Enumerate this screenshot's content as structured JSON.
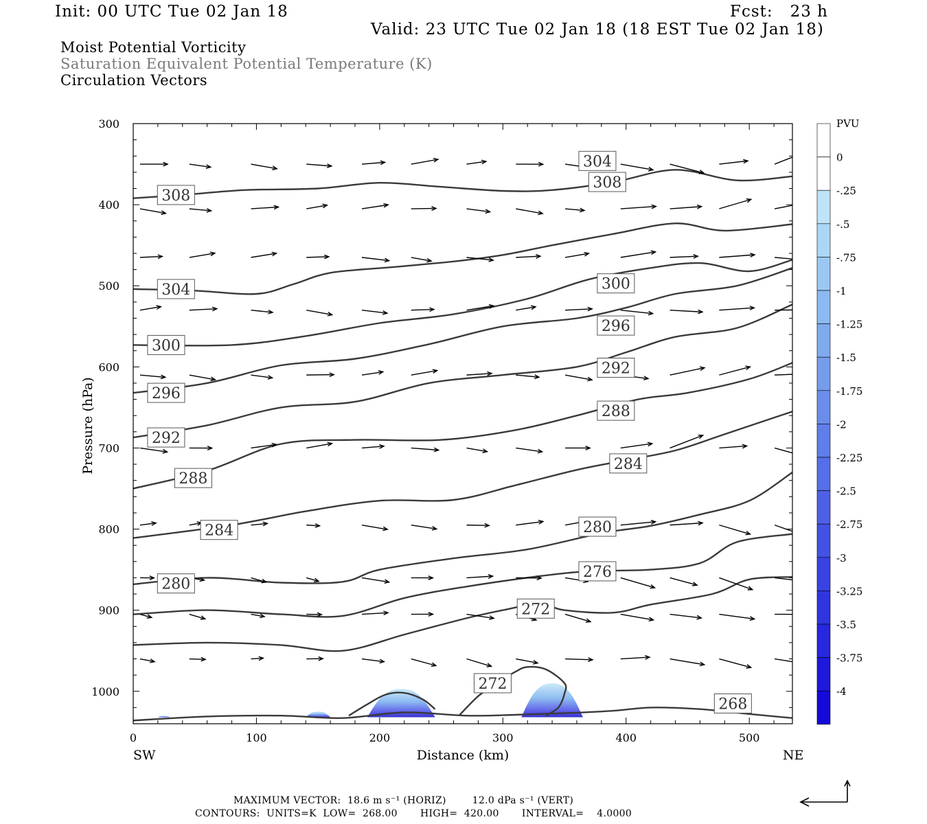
{
  "header": {
    "init": "Init: 00 UTC Tue 02 Jan 18",
    "fcst": "Fcst:   23 h",
    "valid": "Valid: 23 UTC Tue 02 Jan 18 (18 EST Tue 02 Jan 18)",
    "field1": "Moist Potential Vorticity",
    "field2": "Saturation Equivalent Potential Temperature (K)",
    "field3": "Circulation Vectors"
  },
  "footer": {
    "max_vector": "MAXIMUM VECTOR:  18.6 m s⁻¹ (HORIZ)        12.0 dPa s⁻¹ (VERT)",
    "contours": "CONTOURS:  UNITS=K  LOW=  268.00       HIGH=  420.00       INTERVAL=    4.0000"
  },
  "colors": {
    "contour": "#3a3a3a",
    "vector": "#000000",
    "shade_light": "#bfe3f5",
    "shade_dark": "#2a2ad0"
  },
  "chart_data": {
    "type": "line",
    "xlabel": "Distance (km)",
    "ylabel": "Pressure (hPa)",
    "xlim": [
      0,
      535
    ],
    "ylim": [
      1040,
      300
    ],
    "y_scale": "linear, inverted",
    "x_ticks": [
      "0",
      "100",
      "200",
      "300",
      "400",
      "500"
    ],
    "y_ticks": [
      "300",
      "400",
      "500",
      "600",
      "700",
      "800",
      "900",
      "1000"
    ],
    "left_label": "SW",
    "right_label": "NE",
    "contour_interval": 4,
    "contour_units": "K",
    "contours": [
      {
        "level": 308,
        "label": "308",
        "label_pos": [
          [
            18,
            388
          ],
          [
            368,
            372
          ]
        ],
        "points": [
          [
            0,
            392
          ],
          [
            40,
            388
          ],
          [
            90,
            382
          ],
          [
            150,
            380
          ],
          [
            200,
            373
          ],
          [
            250,
            378
          ],
          [
            300,
            383
          ],
          [
            340,
            382
          ],
          [
            390,
            372
          ],
          [
            440,
            357
          ],
          [
            490,
            370
          ],
          [
            535,
            365
          ]
        ]
      },
      {
        "level": 304,
        "label": "304",
        "label_pos": [
          [
            18,
            504
          ],
          [
            360,
            346
          ]
        ],
        "points": [
          [
            0,
            504
          ],
          [
            50,
            506
          ],
          [
            100,
            510
          ],
          [
            130,
            498
          ],
          [
            160,
            484
          ],
          [
            210,
            477
          ],
          [
            260,
            470
          ],
          [
            300,
            462
          ],
          [
            340,
            450
          ],
          [
            390,
            436
          ],
          [
            440,
            423
          ],
          [
            480,
            432
          ],
          [
            535,
            424
          ]
        ]
      },
      {
        "level": 300,
        "label": "300",
        "label_pos": [
          [
            10,
            573
          ],
          [
            375,
            497
          ]
        ],
        "points": [
          [
            0,
            573
          ],
          [
            80,
            573
          ],
          [
            140,
            562
          ],
          [
            200,
            546
          ],
          [
            260,
            535
          ],
          [
            320,
            516
          ],
          [
            370,
            492
          ],
          [
            420,
            478
          ],
          [
            460,
            472
          ],
          [
            500,
            482
          ],
          [
            535,
            468
          ]
        ]
      },
      {
        "level": 296,
        "label": "296",
        "label_pos": [
          [
            10,
            632
          ],
          [
            375,
            549
          ]
        ],
        "points": [
          [
            0,
            632
          ],
          [
            60,
            620
          ],
          [
            120,
            598
          ],
          [
            180,
            590
          ],
          [
            240,
            572
          ],
          [
            300,
            550
          ],
          [
            360,
            540
          ],
          [
            400,
            527
          ],
          [
            440,
            510
          ],
          [
            490,
            500
          ],
          [
            535,
            478
          ]
        ]
      },
      {
        "level": 292,
        "label": "292",
        "label_pos": [
          [
            10,
            687
          ],
          [
            375,
            601
          ]
        ],
        "points": [
          [
            0,
            687
          ],
          [
            60,
            672
          ],
          [
            120,
            650
          ],
          [
            180,
            643
          ],
          [
            240,
            620
          ],
          [
            300,
            610
          ],
          [
            360,
            600
          ],
          [
            400,
            582
          ],
          [
            440,
            563
          ],
          [
            490,
            552
          ],
          [
            535,
            523
          ]
        ]
      },
      {
        "level": 288,
        "label": "288",
        "label_pos": [
          [
            32,
            737
          ],
          [
            375,
            654
          ]
        ],
        "points": [
          [
            0,
            750
          ],
          [
            60,
            728
          ],
          [
            120,
            695
          ],
          [
            180,
            690
          ],
          [
            250,
            690
          ],
          [
            310,
            678
          ],
          [
            360,
            660
          ],
          [
            410,
            640
          ],
          [
            450,
            632
          ],
          [
            500,
            615
          ],
          [
            535,
            595
          ]
        ]
      },
      {
        "level": 284,
        "label": "284",
        "label_pos": [
          [
            53,
            801
          ],
          [
            385,
            719
          ]
        ],
        "points": [
          [
            0,
            811
          ],
          [
            80,
            795
          ],
          [
            140,
            778
          ],
          [
            200,
            765
          ],
          [
            260,
            764
          ],
          [
            310,
            746
          ],
          [
            360,
            727
          ],
          [
            400,
            715
          ],
          [
            440,
            703
          ],
          [
            480,
            683
          ],
          [
            535,
            655
          ]
        ]
      },
      {
        "level": 280,
        "label": "280",
        "label_pos": [
          [
            18,
            867
          ],
          [
            360,
            797
          ]
        ],
        "points": [
          [
            0,
            868
          ],
          [
            60,
            860
          ],
          [
            120,
            866
          ],
          [
            170,
            865
          ],
          [
            200,
            850
          ],
          [
            260,
            836
          ],
          [
            320,
            825
          ],
          [
            380,
            805
          ],
          [
            420,
            796
          ],
          [
            460,
            782
          ],
          [
            500,
            765
          ],
          [
            535,
            730
          ]
        ]
      },
      {
        "level": 276,
        "label": "276",
        "label_pos": [
          [
            360,
            852
          ]
        ],
        "points": [
          [
            0,
            905
          ],
          [
            60,
            900
          ],
          [
            120,
            905
          ],
          [
            170,
            907
          ],
          [
            220,
            885
          ],
          [
            270,
            871
          ],
          [
            330,
            858
          ],
          [
            370,
            852
          ],
          [
            420,
            850
          ],
          [
            460,
            842
          ],
          [
            490,
            816
          ],
          [
            535,
            806
          ]
        ]
      },
      {
        "level": 272,
        "label": "272",
        "label_pos": [
          [
            310,
            898
          ],
          [
            275,
            990
          ]
        ],
        "points": [
          [
            0,
            943
          ],
          [
            60,
            940
          ],
          [
            120,
            943
          ],
          [
            170,
            950
          ],
          [
            220,
            930
          ],
          [
            270,
            910
          ],
          [
            300,
            900
          ],
          [
            330,
            892
          ],
          [
            350,
            900
          ],
          [
            390,
            903
          ],
          [
            420,
            893
          ],
          [
            470,
            880
          ],
          [
            500,
            862
          ],
          [
            535,
            859
          ]
        ]
      },
      {
        "level": 272,
        "label": "",
        "points": [
          [
            175,
            1030
          ],
          [
            190,
            1016
          ],
          [
            205,
            1004
          ],
          [
            220,
            1002
          ],
          [
            235,
            1010
          ],
          [
            245,
            1022
          ]
        ]
      },
      {
        "level": 272,
        "label": "",
        "points": [
          [
            265,
            1029
          ],
          [
            280,
            1006
          ],
          [
            295,
            990
          ],
          [
            310,
            976
          ],
          [
            320,
            970
          ],
          [
            335,
            973
          ],
          [
            350,
            990
          ],
          [
            350,
            1003
          ],
          [
            345,
            1020
          ],
          [
            335,
            1030
          ]
        ]
      },
      {
        "level": 268,
        "label": "268",
        "label_pos": [
          [
            470,
            1015
          ]
        ],
        "points": [
          [
            0,
            1036
          ],
          [
            60,
            1031
          ],
          [
            120,
            1030
          ],
          [
            170,
            1033
          ],
          [
            220,
            1026
          ],
          [
            270,
            1030
          ],
          [
            310,
            1029
          ],
          [
            350,
            1027
          ],
          [
            390,
            1024
          ],
          [
            420,
            1020
          ],
          [
            460,
            1022
          ],
          [
            500,
            1028
          ],
          [
            535,
            1033
          ]
        ]
      }
    ],
    "mpv_shading": {
      "units": "PVU",
      "colorbar_labels": [
        "PVU",
        "0",
        "-.25",
        "-.5",
        "-.75",
        "-1",
        "-1.25",
        "-1.5",
        "-1.75",
        "-2",
        "-2.25",
        "-2.5",
        "-2.75",
        "-3",
        "-3.25",
        "-3.5",
        "-3.75",
        "-4"
      ],
      "regions": [
        {
          "x": [
            190,
            245
          ],
          "p_top": 997,
          "min_pvu": -2.5
        },
        {
          "x": [
            315,
            365
          ],
          "p_top": 990,
          "min_pvu": -2.5
        },
        {
          "x": [
            140,
            160
          ],
          "p_top": 1025,
          "min_pvu": -0.5
        },
        {
          "x": [
            20,
            30
          ],
          "p_top": 1030,
          "min_pvu": -0.25
        }
      ]
    },
    "vector_rows_hpa": [
      350,
      405,
      465,
      530,
      610,
      700,
      795,
      860,
      905,
      960
    ],
    "vector_cols_km": [
      0,
      40,
      90,
      135,
      180,
      220,
      265,
      305,
      345,
      390,
      430,
      470,
      515
    ],
    "reference_vector": {
      "horiz_ms": 18.6,
      "vert_dPa_s": 12.0
    }
  }
}
